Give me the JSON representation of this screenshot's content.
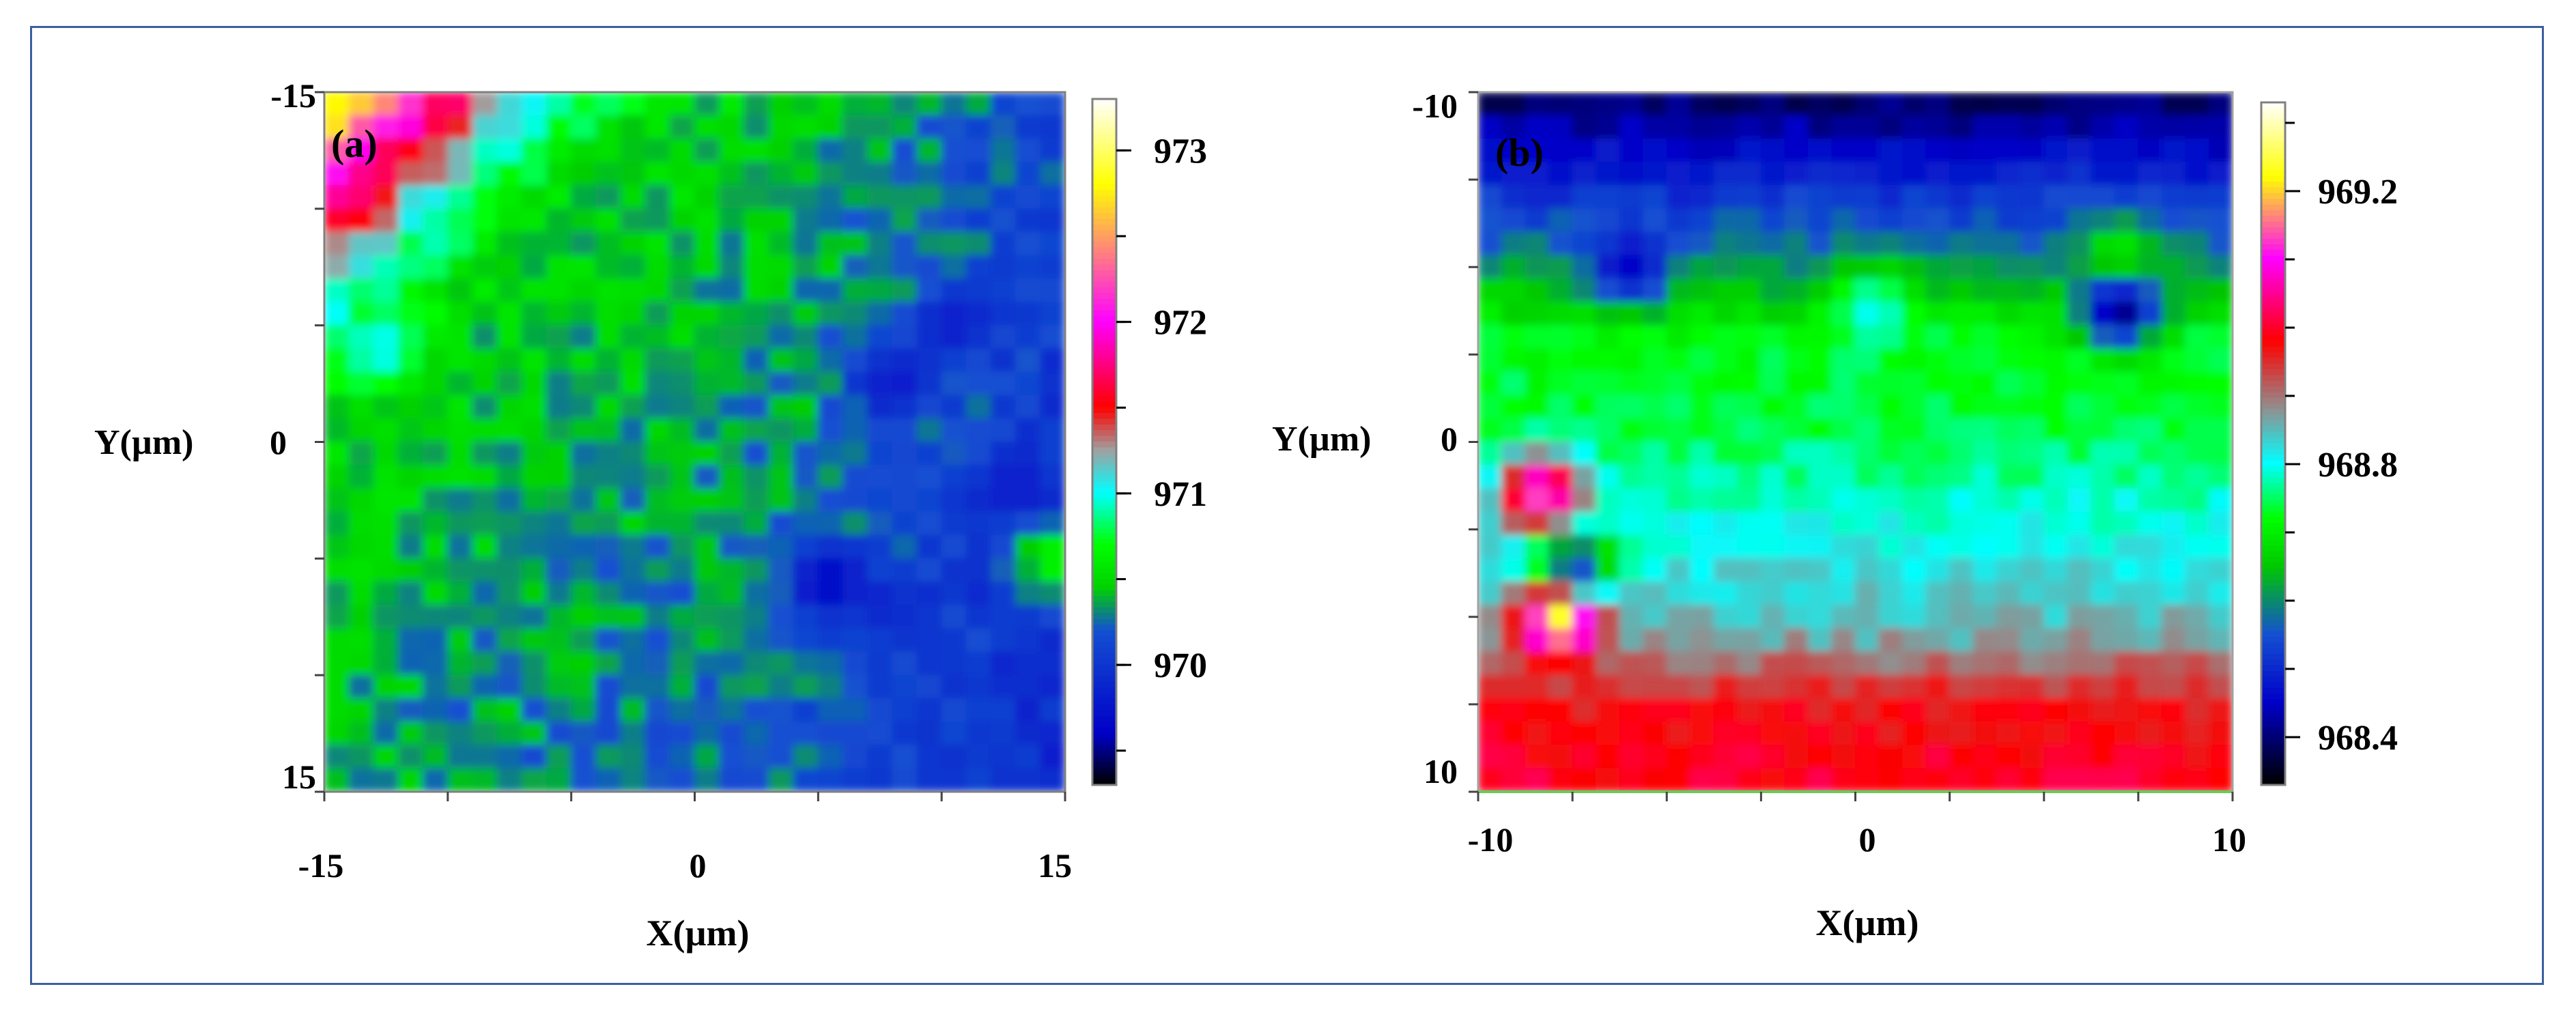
{
  "chart_data": [
    {
      "type": "heatmap",
      "panel_label": "(a)",
      "xlabel": "X(µm)",
      "ylabel": "Y(µm)",
      "xlim": [
        -15,
        15
      ],
      "ylim": [
        -15,
        15
      ],
      "x_ticks": [
        "-15",
        "0",
        "15"
      ],
      "y_ticks": [
        "-15",
        "0",
        "15"
      ],
      "y_axis_inverted": true,
      "grid": false,
      "colorbar": {
        "range": [
          969.3,
          973.3
        ],
        "ticks": [
          "970",
          "971",
          "972",
          "973"
        ],
        "colormap": [
          [
            969.3,
            "#000000"
          ],
          [
            969.6,
            "#0000c8"
          ],
          [
            970.2,
            "#1450d2"
          ],
          [
            970.45,
            "#00d200"
          ],
          [
            970.7,
            "#00ff00"
          ],
          [
            971.0,
            "#00ffff"
          ],
          [
            971.25,
            "#a0a0a0"
          ],
          [
            971.5,
            "#ff0000"
          ],
          [
            972.0,
            "#ff00ff"
          ],
          [
            972.8,
            "#ffff00"
          ],
          [
            973.3,
            "#ffffff"
          ]
        ]
      },
      "field_description": "Values increase toward the top-left corner (x=-15, y=-15) up to ~973, with a green (~970.5) band through the middle and blue (~970) toward the right side; local dark spot near (5, 6).",
      "features": [
        {
          "x": 5.0,
          "y": 6.0,
          "value": 969.4
        },
        {
          "x": 4.0,
          "y": 6.0,
          "value": 970.6
        },
        {
          "x": 14.5,
          "y": 5.0,
          "value": 970.7
        },
        {
          "x": 10.5,
          "y": -5.0,
          "value": 969.8
        },
        {
          "x": 8.0,
          "y": -2.5,
          "value": 969.8
        },
        {
          "x": 13.0,
          "y": 2.0,
          "value": 969.8
        },
        {
          "x": 8.0,
          "y": 7.0,
          "value": 969.9
        },
        {
          "x": -12.5,
          "y": -4.0,
          "value": 971.0
        }
      ]
    },
    {
      "type": "heatmap",
      "panel_label": "(b)",
      "xlabel": "X(µm)",
      "ylabel": "Y(µm)",
      "xlim": [
        -10,
        10
      ],
      "ylim": [
        -10,
        10
      ],
      "x_ticks": [
        "-10",
        "0",
        "10"
      ],
      "y_ticks": [
        "-10",
        "0",
        "10"
      ],
      "y_axis_inverted": true,
      "grid": false,
      "colorbar": {
        "range": [
          968.33,
          969.33
        ],
        "ticks": [
          "968.4",
          "968.8",
          "969.2"
        ],
        "colormap": [
          [
            968.33,
            "#000000"
          ],
          [
            968.45,
            "#0000c8"
          ],
          [
            968.55,
            "#1450d2"
          ],
          [
            968.65,
            "#00c800"
          ],
          [
            968.72,
            "#00ff00"
          ],
          [
            968.8,
            "#00ffff"
          ],
          [
            968.88,
            "#909090"
          ],
          [
            968.98,
            "#ff0000"
          ],
          [
            969.1,
            "#ff00ff"
          ],
          [
            969.22,
            "#ffff00"
          ],
          [
            969.33,
            "#ffffff"
          ]
        ]
      },
      "field_description": "Horizontal bands: dark blue (~968.4-968.5) near y=-10, green (~968.7) around y=-3, cyan (~968.8) around y=3, red (~969.0) near y=10; hot spots at the left edge.",
      "row_profile": [
        {
          "y": -10.0,
          "value": 968.38
        },
        {
          "y": -7.5,
          "value": 968.5
        },
        {
          "y": -5.5,
          "value": 968.58
        },
        {
          "y": -3.0,
          "value": 968.72
        },
        {
          "y": -0.5,
          "value": 968.74
        },
        {
          "y": 2.5,
          "value": 968.8
        },
        {
          "y": 5.5,
          "value": 968.86
        },
        {
          "y": 7.5,
          "value": 968.97
        },
        {
          "y": 10.0,
          "value": 969.0
        }
      ],
      "features": [
        {
          "x": -8.3,
          "y": 1.5,
          "value": 969.15
        },
        {
          "x": -7.8,
          "y": 5.0,
          "value": 969.3
        },
        {
          "x": -7.5,
          "y": 3.6,
          "value": 968.45
        },
        {
          "x": -6.0,
          "y": -5.0,
          "value": 968.45
        },
        {
          "x": 7.0,
          "y": -3.8,
          "value": 968.4
        },
        {
          "x": 7.0,
          "y": -5.2,
          "value": 968.72
        },
        {
          "x": 0.5,
          "y": -3.8,
          "value": 968.8
        }
      ]
    }
  ]
}
